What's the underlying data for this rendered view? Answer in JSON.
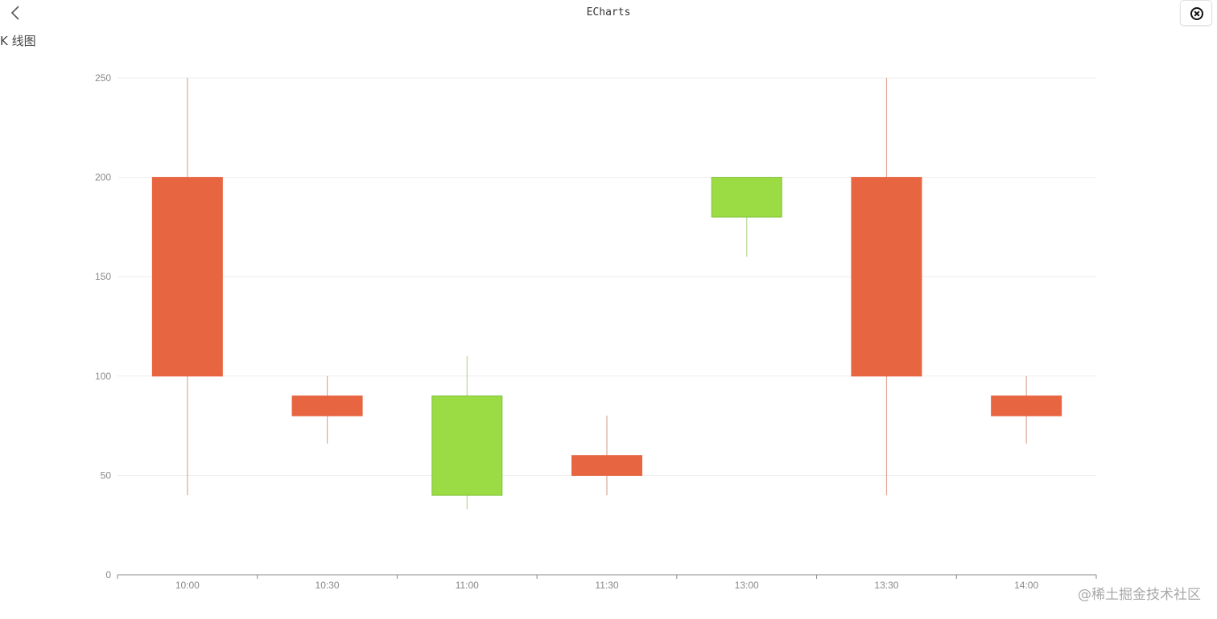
{
  "header": {
    "title": "ECharts",
    "back_icon": "chevron-left-icon",
    "close_icon": "close-circle-icon"
  },
  "page": {
    "heading": "K 线图"
  },
  "chart_data": {
    "type": "candlestick",
    "categories": [
      "10:00",
      "10:30",
      "11:00",
      "11:30",
      "13:00",
      "13:30",
      "14:00"
    ],
    "series": [
      {
        "values": [
          {
            "open": 100,
            "close": 200,
            "low": 40,
            "high": 250
          },
          {
            "open": 80,
            "close": 90,
            "low": 66,
            "high": 100
          },
          {
            "open": 90,
            "close": 40,
            "low": 33,
            "high": 110
          },
          {
            "open": 50,
            "close": 60,
            "low": 40,
            "high": 80
          },
          {
            "open": 200,
            "close": 180,
            "low": 160,
            "high": 200
          },
          {
            "open": 100,
            "close": 200,
            "low": 40,
            "high": 250
          },
          {
            "open": 80,
            "close": 90,
            "low": 66,
            "high": 100
          }
        ]
      }
    ],
    "yticks": [
      0,
      50,
      100,
      150,
      200,
      250
    ],
    "ylim": [
      0,
      250
    ],
    "grid": true,
    "colors": {
      "up": "#e86541",
      "down": "#9bdb43",
      "up_wick": "#e0a898",
      "down_wick": "#b9d79a",
      "down_border": "#7fc23a",
      "grid": "#eeeeee",
      "axis": "#888888"
    }
  },
  "watermark": {
    "text": "@稀土掘金技术社区"
  }
}
